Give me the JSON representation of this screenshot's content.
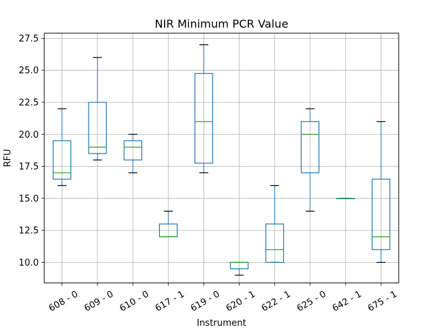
{
  "chart_data": {
    "type": "box",
    "title": "NIR Minimum PCR Value",
    "xlabel": "Instrument",
    "ylabel": "RFU",
    "ylim": [
      8.4,
      27.9
    ],
    "yticks": [
      "10.0",
      "12.5",
      "15.0",
      "17.5",
      "20.0",
      "22.5",
      "25.0",
      "27.5"
    ],
    "grid": true,
    "categories": [
      "608 - 0",
      "609 - 0",
      "610 - 0",
      "617 - 1",
      "619 - 0",
      "620 - 1",
      "622 - 1",
      "625 - 0",
      "642 - 1",
      "675 - 1"
    ],
    "boxes": [
      {
        "min": 16,
        "q1": 16.5,
        "median": 17,
        "q3": 19.5,
        "max": 22
      },
      {
        "min": 18,
        "q1": 18.5,
        "median": 19,
        "q3": 22.5,
        "max": 26
      },
      {
        "min": 17,
        "q1": 18,
        "median": 19,
        "q3": 19.5,
        "max": 20
      },
      {
        "min": 12,
        "q1": 12,
        "median": 12,
        "q3": 13,
        "max": 14
      },
      {
        "min": 17,
        "q1": 17.75,
        "median": 21,
        "q3": 24.75,
        "max": 27
      },
      {
        "min": 9,
        "q1": 9.5,
        "median": 10,
        "q3": 10,
        "max": 10
      },
      {
        "min": 10,
        "q1": 10,
        "median": 11,
        "q3": 13,
        "max": 16
      },
      {
        "min": 14,
        "q1": 17,
        "median": 20,
        "q3": 21,
        "max": 22
      },
      {
        "min": 15,
        "q1": 15,
        "median": 15,
        "q3": 15,
        "max": 15
      },
      {
        "min": 10,
        "q1": 11,
        "median": 12,
        "q3": 16.5,
        "max": 21
      }
    ],
    "colors": {
      "box": "#1f77b4",
      "median": "#2ca02c",
      "whisker": "#000000",
      "grid": "#b0b0b0"
    }
  }
}
